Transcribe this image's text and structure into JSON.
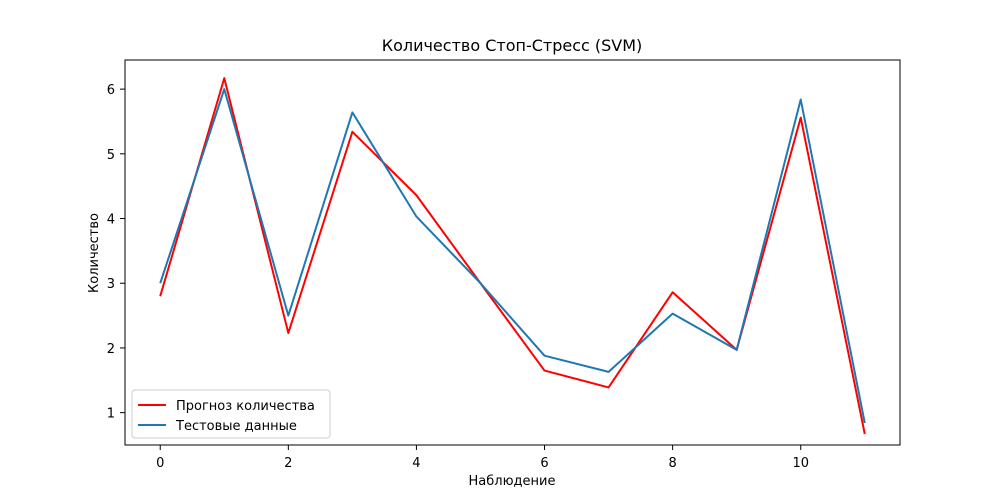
{
  "chart_data": {
    "type": "line",
    "title": "Количество Стоп-Стресс (SVM)",
    "xlabel": "Наблюдение",
    "ylabel": "Количество",
    "x": [
      0,
      1,
      2,
      3,
      4,
      5,
      6,
      7,
      8,
      9,
      10,
      11
    ],
    "xlim": [
      -0.55,
      11.55
    ],
    "ylim": [
      0.5,
      6.45
    ],
    "xticks": [
      0,
      2,
      4,
      6,
      8,
      10
    ],
    "yticks": [
      1,
      2,
      3,
      4,
      5,
      6
    ],
    "grid": false,
    "legend_position": "lower-left",
    "series": [
      {
        "name": "Прогноз количества",
        "color": "#ff0000",
        "values": [
          2.8,
          6.17,
          2.23,
          5.34,
          4.36,
          3.0,
          1.65,
          1.39,
          2.86,
          1.97,
          5.56,
          0.67
        ]
      },
      {
        "name": "Тестовые данные",
        "color": "#1f77b4",
        "values": [
          3.0,
          6.0,
          2.5,
          5.64,
          4.03,
          3.0,
          1.88,
          1.63,
          2.53,
          1.97,
          5.84,
          0.84
        ]
      }
    ]
  }
}
